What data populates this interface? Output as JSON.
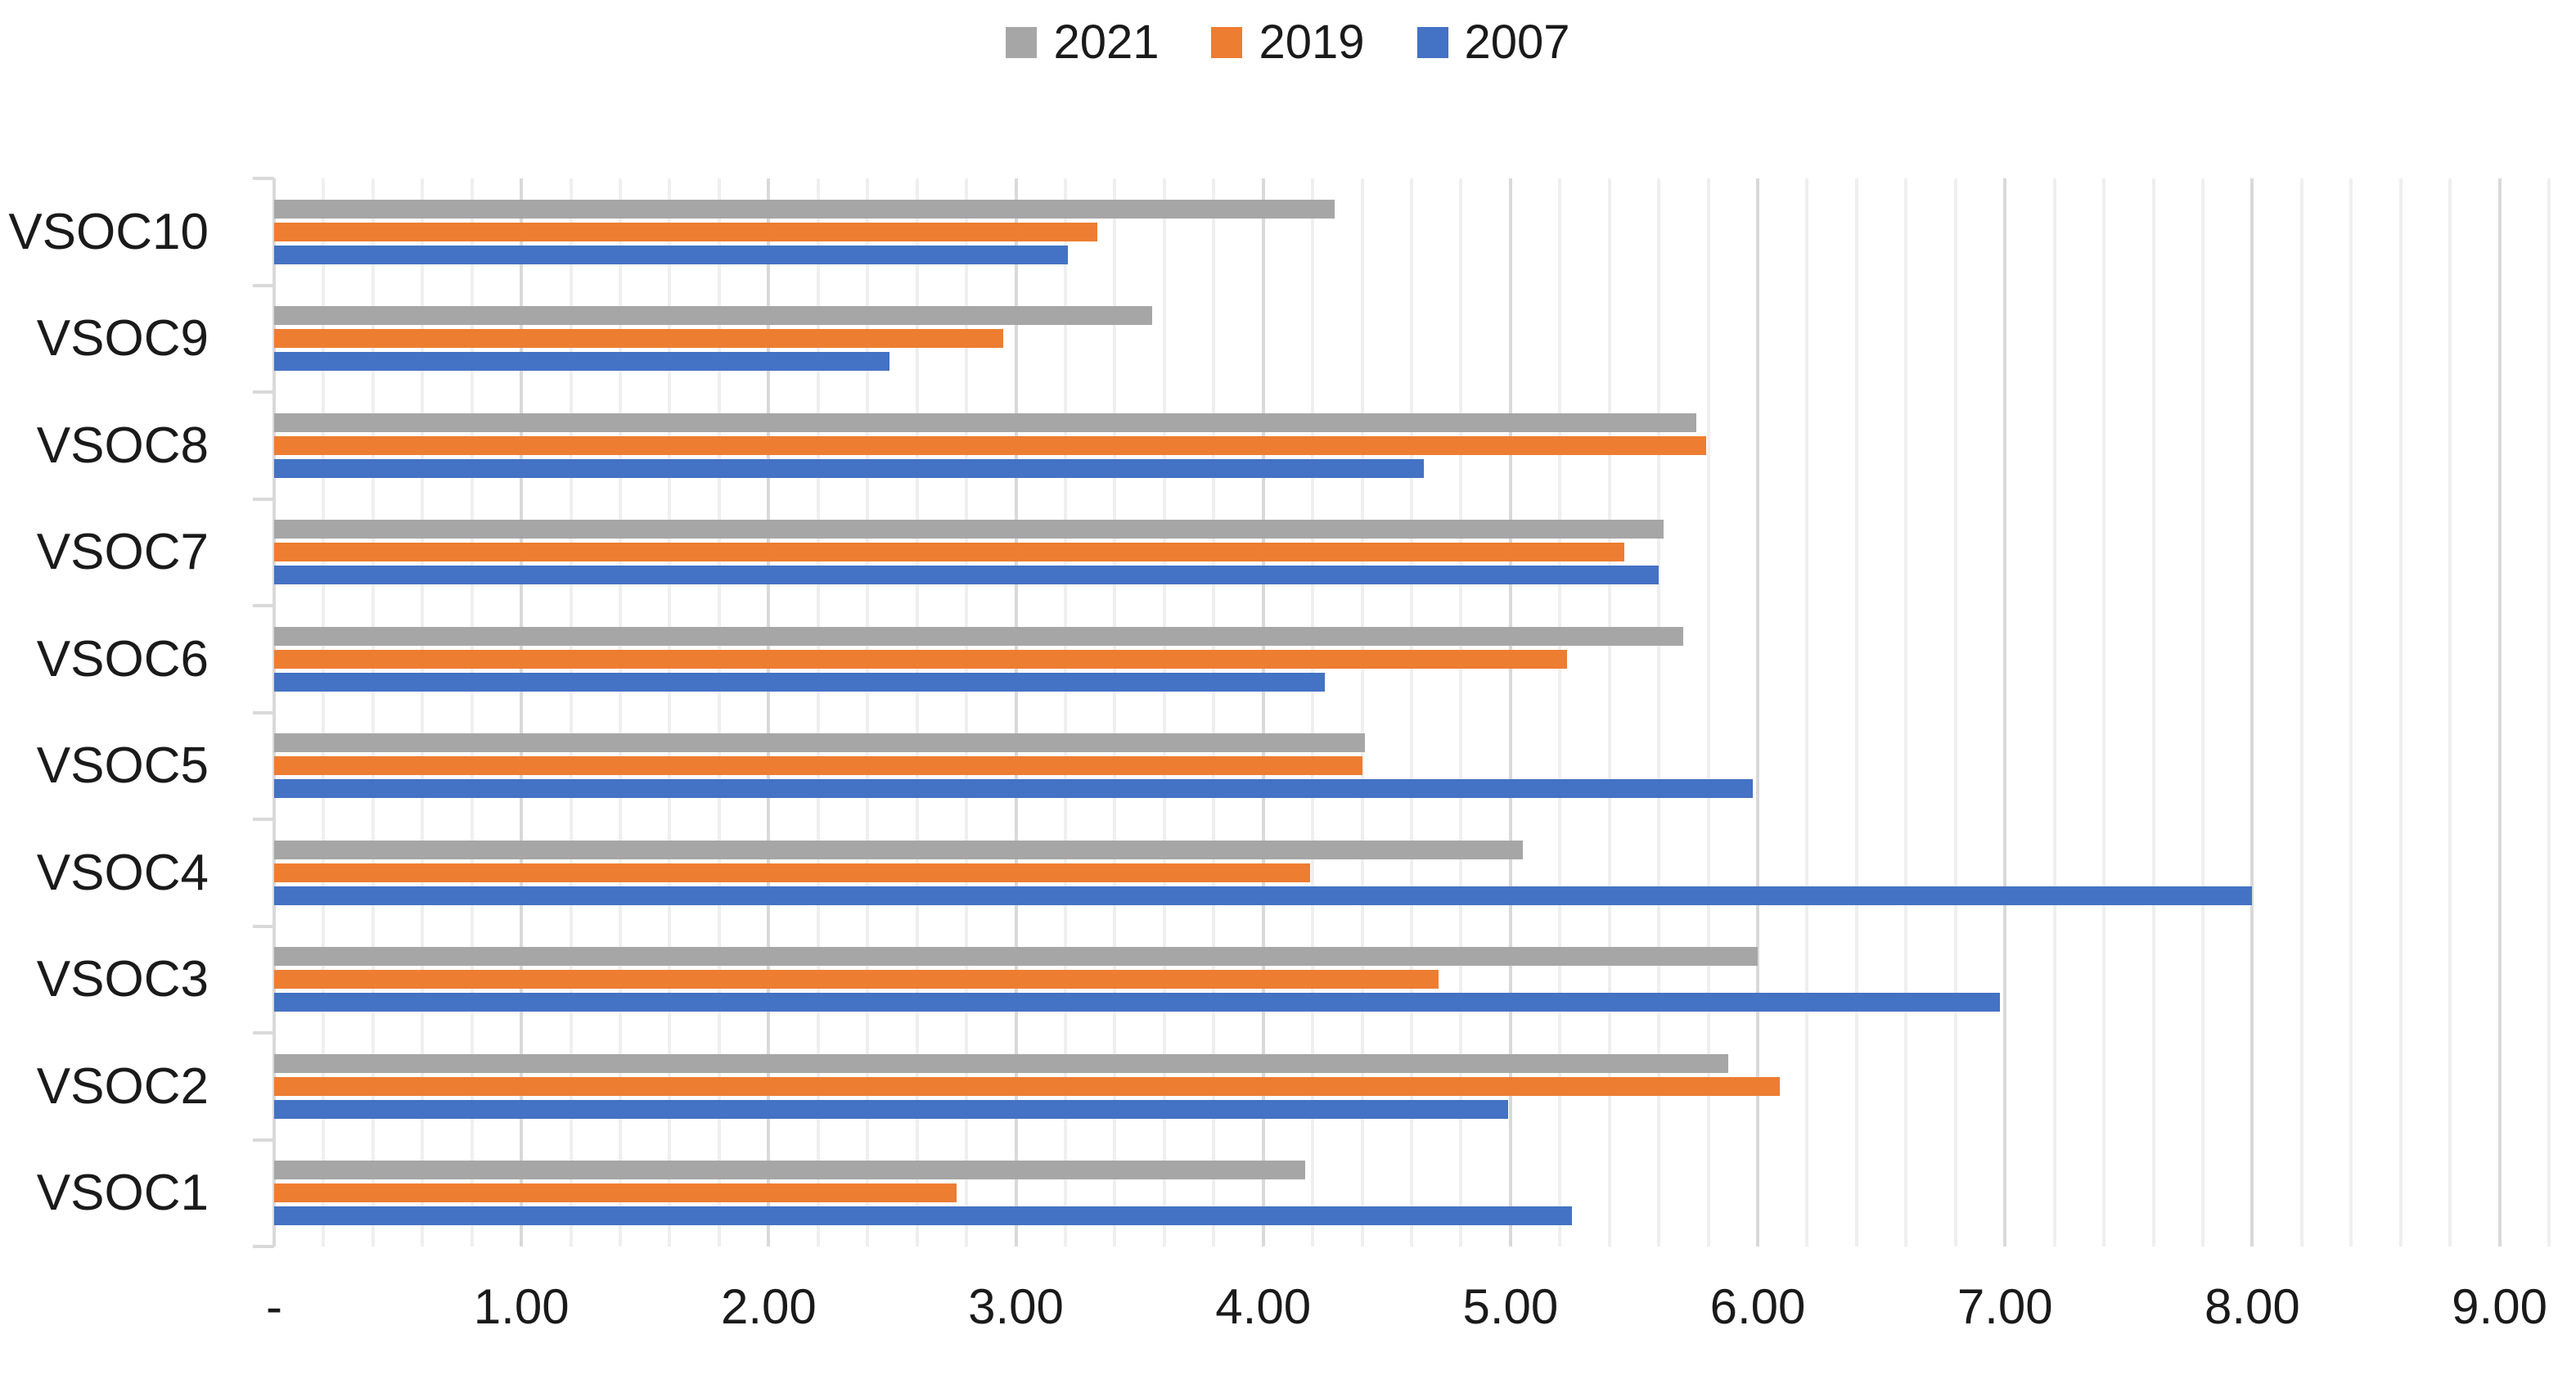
{
  "chart_data": {
    "type": "bar",
    "orientation": "horizontal",
    "title": "",
    "xlabel": "",
    "ylabel": "",
    "categories": [
      "VSOC10",
      "VSOC9",
      "VSOC8",
      "VSOC7",
      "VSOC6",
      "VSOC5",
      "VSOC4",
      "VSOC3",
      "VSOC2",
      "VSOC1"
    ],
    "series": [
      {
        "name": "2021",
        "color": "#A6A6A6",
        "values": [
          4.29,
          3.55,
          5.75,
          5.62,
          5.7,
          4.41,
          5.05,
          6.0,
          5.88,
          4.17
        ]
      },
      {
        "name": "2019",
        "color": "#ED7D31",
        "values": [
          3.33,
          2.95,
          5.79,
          5.46,
          5.23,
          4.4,
          4.19,
          4.71,
          6.09,
          2.76
        ]
      },
      {
        "name": "2007",
        "color": "#4472C4",
        "values": [
          3.21,
          2.49,
          4.65,
          5.6,
          4.25,
          5.98,
          8.0,
          6.98,
          4.99,
          5.25
        ]
      }
    ],
    "x_axis": {
      "min": 0,
      "max_visible_gridline": 9.2,
      "major_tick_interval": 1.0,
      "minor_gridline_interval": 0.2,
      "tick_labels": [
        "-",
        "1.00",
        "2.00",
        "3.00",
        "4.00",
        "5.00",
        "6.00",
        "7.00",
        "8.00",
        "9.00"
      ]
    },
    "legend": {
      "position": "top",
      "entries": [
        "2021",
        "2019",
        "2007"
      ]
    },
    "grid": true
  },
  "colors": {
    "background": "#FFFFFF",
    "minor_gridline": "#EFEFEF",
    "major_gridline": "#D9D9D9",
    "axis_line": "#D9D9D9",
    "text": "#1A1A1A",
    "series_2021": "#A6A6A6",
    "series_2019": "#ED7D31",
    "series_2007": "#4472C4"
  }
}
